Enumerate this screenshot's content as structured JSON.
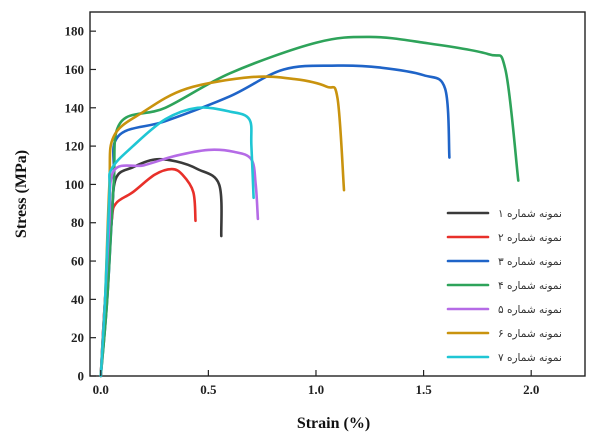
{
  "chart_data": {
    "type": "line",
    "xlabel": "Strain (%)",
    "ylabel": "Stress (MPa)",
    "xlim": [
      -0.05,
      2.25
    ],
    "ylim": [
      0,
      190
    ],
    "xticks": [
      0.0,
      0.5,
      1.0,
      1.5,
      2.0
    ],
    "xtick_labels": [
      "0.0",
      "0.5",
      "1.0",
      "1.5",
      "2.0"
    ],
    "yticks": [
      0,
      20,
      40,
      60,
      80,
      100,
      120,
      140,
      160,
      180
    ],
    "ytick_labels": [
      "0",
      "20",
      "40",
      "60",
      "80",
      "100",
      "120",
      "140",
      "160",
      "180"
    ],
    "grid": false,
    "legend_position": "bottom-right",
    "series": [
      {
        "name": "نمونه شماره ۱",
        "color": "#3a3a3a",
        "x": [
          0,
          0.02,
          0.05,
          0.07,
          0.15,
          0.25,
          0.35,
          0.45,
          0.55,
          0.56
        ],
        "y": [
          0,
          40,
          80,
          103,
          109,
          113,
          112,
          108,
          100,
          73
        ]
      },
      {
        "name": "نمونه شماره ۲",
        "color": "#e8302a",
        "x": [
          0,
          0.02,
          0.05,
          0.07,
          0.15,
          0.25,
          0.33,
          0.38,
          0.43,
          0.44
        ],
        "y": [
          0,
          40,
          80,
          90,
          96,
          105,
          108,
          105,
          96,
          81
        ]
      },
      {
        "name": "نمونه شماره ۳",
        "color": "#1f64c8",
        "x": [
          0,
          0.03,
          0.06,
          0.08,
          0.3,
          0.6,
          0.85,
          1.1,
          1.3,
          1.5,
          1.6,
          1.62
        ],
        "y": [
          0,
          40,
          100,
          125,
          133,
          146,
          160,
          162,
          161,
          157,
          150,
          114
        ]
      },
      {
        "name": "نمونه شماره ۴",
        "color": "#2ea35a",
        "x": [
          0,
          0.03,
          0.06,
          0.09,
          0.3,
          0.6,
          1.0,
          1.25,
          1.5,
          1.8,
          1.88,
          1.94
        ],
        "y": [
          0,
          40,
          100,
          132,
          140,
          158,
          174,
          177,
          174,
          168,
          160,
          102
        ]
      },
      {
        "name": "نمونه شماره ۵",
        "color": "#b56be6",
        "x": [
          0,
          0.02,
          0.04,
          0.06,
          0.2,
          0.35,
          0.5,
          0.62,
          0.7,
          0.72,
          0.73
        ],
        "y": [
          0,
          40,
          80,
          107,
          110,
          115,
          118,
          117,
          113,
          100,
          82
        ]
      },
      {
        "name": "نمونه شماره ۶",
        "color": "#c9930e",
        "x": [
          0,
          0.02,
          0.04,
          0.06,
          0.2,
          0.4,
          0.7,
          0.9,
          1.05,
          1.1,
          1.13
        ],
        "y": [
          0,
          40,
          100,
          125,
          138,
          150,
          156,
          155,
          151,
          145,
          97
        ]
      },
      {
        "name": "نمونه شماره ۷",
        "color": "#1fc6d4",
        "x": [
          0,
          0.02,
          0.04,
          0.05,
          0.15,
          0.3,
          0.45,
          0.6,
          0.69,
          0.7,
          0.71
        ],
        "y": [
          0,
          40,
          95,
          108,
          120,
          134,
          140,
          138,
          134,
          120,
          93
        ]
      }
    ]
  }
}
